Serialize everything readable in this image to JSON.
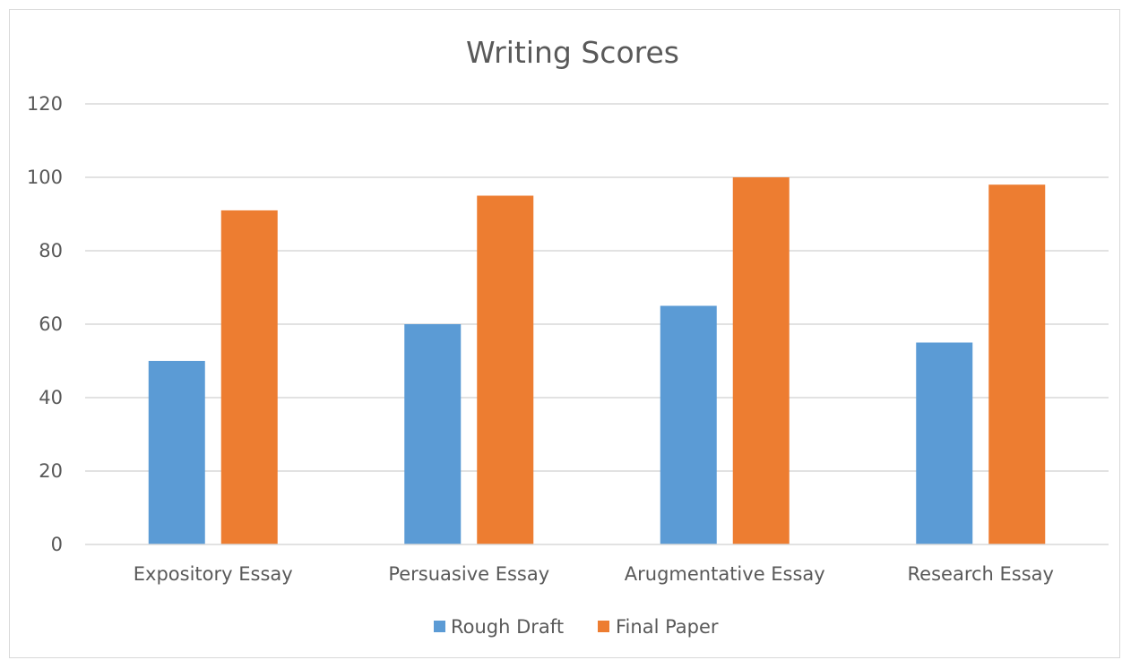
{
  "chart_data": {
    "type": "bar",
    "title": "Writing Scores",
    "xlabel": "",
    "ylabel": "",
    "categories": [
      "Expository Essay",
      "Persuasive Essay",
      "Arugmentative Essay",
      "Research Essay"
    ],
    "series": [
      {
        "name": "Rough Draft",
        "values": [
          50,
          60,
          65,
          55
        ],
        "color": "#5b9bd5"
      },
      {
        "name": "Final Paper",
        "values": [
          91,
          95,
          100,
          98
        ],
        "color": "#ed7d31"
      }
    ],
    "ylim": [
      0,
      120
    ],
    "yticks": [
      0,
      20,
      40,
      60,
      80,
      100,
      120
    ],
    "grid": true,
    "legend_position": "bottom"
  }
}
